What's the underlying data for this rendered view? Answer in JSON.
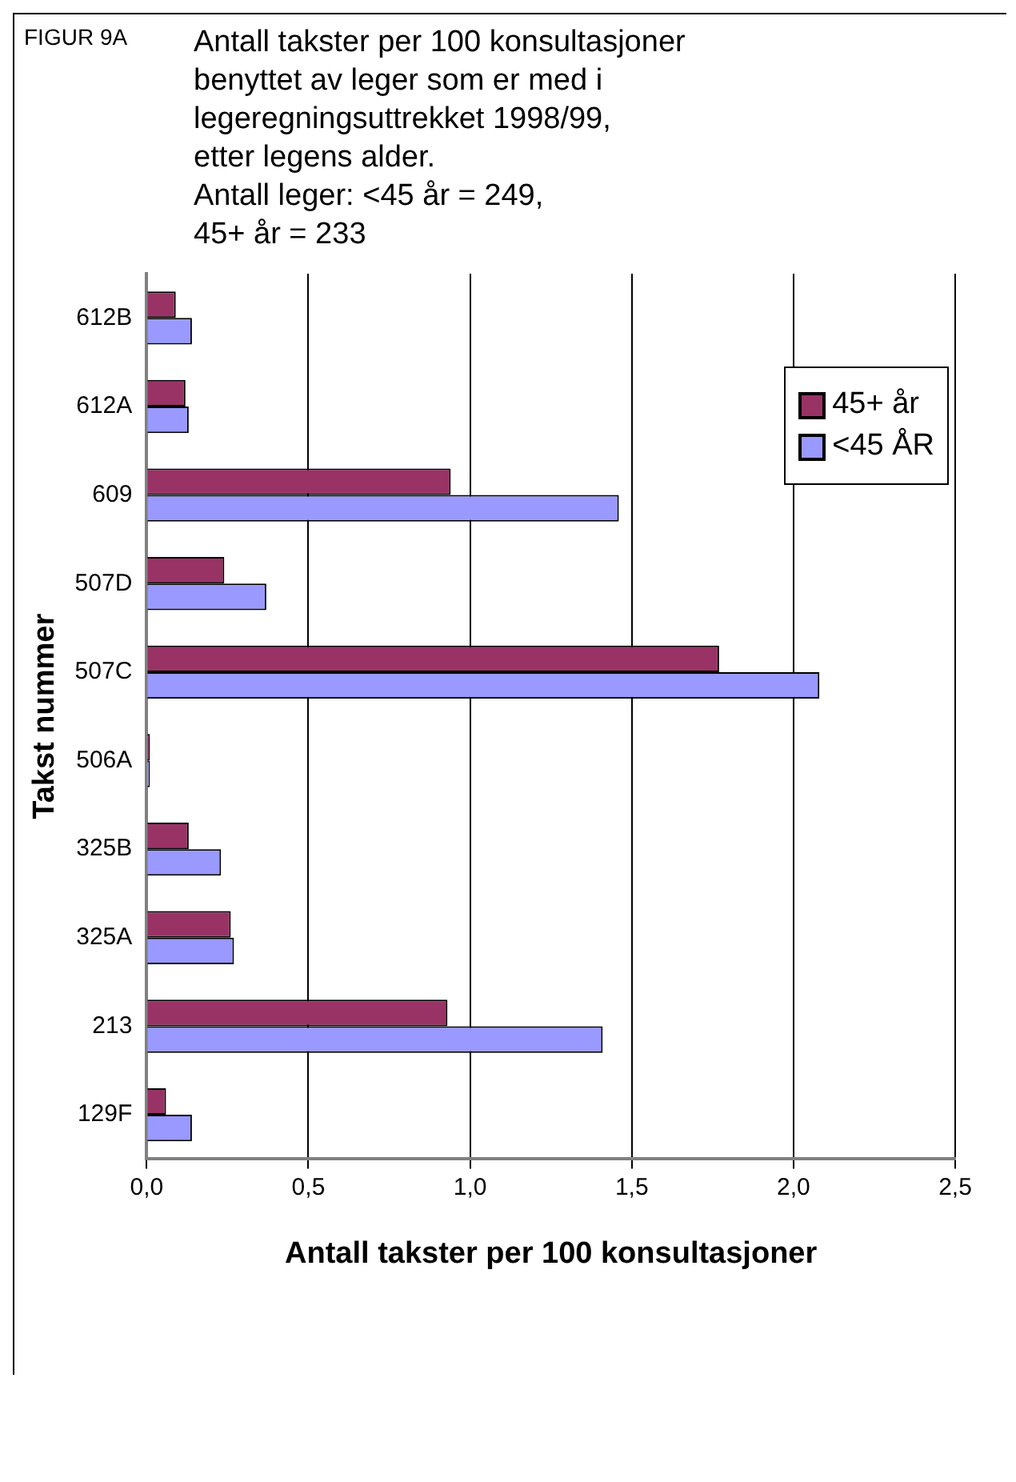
{
  "chart_data": {
    "type": "bar",
    "orientation": "horizontal",
    "title": "Antall takster per 100 konsultasjoner\nbenyttet av leger som er med i\nlegeregningsuttrekket 1998/99,\netter legens  alder.\nAntall leger: <45 år = 249,\n45+ år = 233",
    "annotations": [
      "FIGUR 9A"
    ],
    "xlabel": "Antall takster per 100 konsultasjoner",
    "ylabel": "Takst nummer",
    "categories": [
      "612B",
      "612A",
      "609",
      "507D",
      "507C",
      "506A",
      "325B",
      "325A",
      "213",
      "129F"
    ],
    "series": [
      {
        "name": "45+ år",
        "color": "#993366",
        "values": [
          0.09,
          0.12,
          0.94,
          0.24,
          1.77,
          0.01,
          0.13,
          0.26,
          0.93,
          0.06
        ]
      },
      {
        "name": "<45  ÅR",
        "color": "#9999ff",
        "values": [
          0.14,
          0.13,
          1.46,
          0.37,
          2.08,
          0.01,
          0.23,
          0.27,
          1.41,
          0.14
        ]
      }
    ],
    "xlim": [
      0,
      2.5
    ],
    "xticks": [
      {
        "value": 0,
        "label": "0,0"
      },
      {
        "value": 0.5,
        "label": "0,5"
      },
      {
        "value": 1,
        "label": "1,0"
      },
      {
        "value": 1.5,
        "label": "1,5"
      },
      {
        "value": 2,
        "label": "2,0"
      },
      {
        "value": 2.5,
        "label": "2,5"
      }
    ],
    "grid": "x",
    "legend": "top right"
  }
}
